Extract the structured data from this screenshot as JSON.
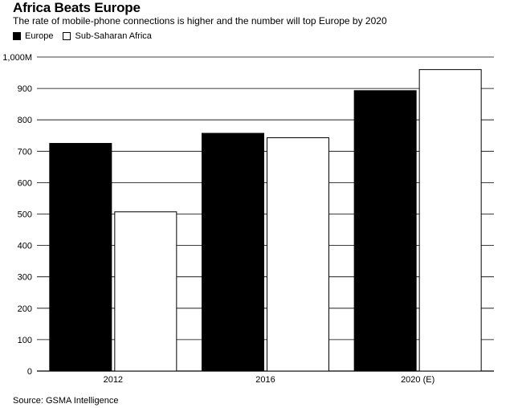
{
  "header": {
    "title": "Africa Beats Europe",
    "subtitle": "The rate of mobile-phone connections is higher and the number will top Europe by 2020"
  },
  "legend": [
    {
      "label": "Europe",
      "color": "#000000"
    },
    {
      "label": "Sub-Saharan Africa",
      "color": "#ffffff"
    }
  ],
  "footer": {
    "source": "Source: GSMA Intelligence"
  },
  "chart_data": {
    "type": "bar",
    "title": "Africa Beats Europe",
    "subtitle": "The rate of mobile-phone connections is higher and the number will top Europe by 2020",
    "categories": [
      "2012",
      "2016",
      "2020 (E)"
    ],
    "series": [
      {
        "name": "Europe",
        "color": "#000000",
        "values": [
          725,
          757,
          893
        ]
      },
      {
        "name": "Sub-Saharan Africa",
        "color": "#ffffff",
        "values": [
          507,
          743,
          960
        ]
      }
    ],
    "ylim": [
      0,
      1000
    ],
    "yticks": [
      0,
      100,
      200,
      300,
      400,
      500,
      600,
      700,
      800,
      900,
      1000
    ],
    "ytick_labels": [
      "0",
      "100",
      "200",
      "300",
      "400",
      "500",
      "600",
      "700",
      "800",
      "900",
      "1,000M"
    ],
    "grid": true,
    "legend_position": "top-left"
  }
}
